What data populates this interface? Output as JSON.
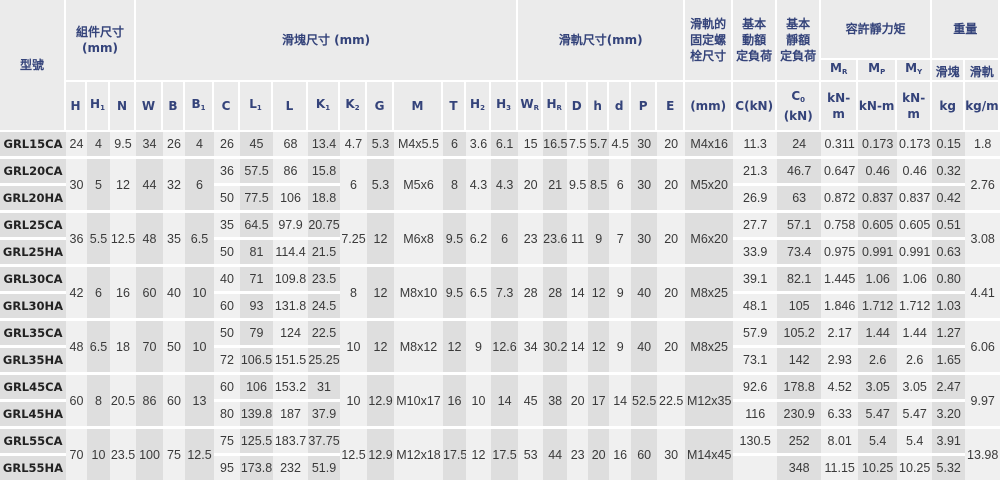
{
  "header": {
    "model": "型號",
    "assembly": "組件尺寸",
    "assembly_unit": "(mm)",
    "block": "滑塊尺寸 (mm)",
    "rail": "滑軌尺寸(mm)",
    "bolt_lines": [
      "滑軌的",
      "固定螺",
      "栓尺寸"
    ],
    "bolt_unit": "(mm)",
    "dynamic_lines": [
      "基本",
      "動額",
      "定負荷"
    ],
    "dynamic_unit": "C(kN)",
    "static_lines": [
      "基本",
      "靜額",
      "定負荷"
    ],
    "static_unit": {
      "t": "C",
      "sub": "0",
      "rest": " (kN)"
    },
    "moment": "容許靜力矩",
    "moment_cols": [
      {
        "t": "M",
        "sub": "R"
      },
      {
        "t": "M",
        "sub": "P"
      },
      {
        "t": "M",
        "sub": "Y"
      }
    ],
    "moment_unit": "kN-m",
    "weight": "重量",
    "weight_cols": [
      "滑塊",
      "滑軌"
    ],
    "weight_units": [
      "kg",
      "kg/m"
    ],
    "dim_cols": [
      {
        "t": "H",
        "sub": ""
      },
      {
        "t": "H",
        "sub": "1"
      },
      {
        "t": "N",
        "sub": ""
      },
      {
        "t": "W",
        "sub": ""
      },
      {
        "t": "B",
        "sub": ""
      },
      {
        "t": "B",
        "sub": "1"
      },
      {
        "t": "C",
        "sub": ""
      },
      {
        "t": "L",
        "sub": "1"
      },
      {
        "t": "L",
        "sub": ""
      },
      {
        "t": "K",
        "sub": "1"
      },
      {
        "t": "K",
        "sub": "2"
      },
      {
        "t": "G",
        "sub": ""
      },
      {
        "t": "M",
        "sub": ""
      },
      {
        "t": "T",
        "sub": ""
      },
      {
        "t": "H",
        "sub": "2"
      },
      {
        "t": "H",
        "sub": "3"
      },
      {
        "t": "W",
        "sub": "R"
      },
      {
        "t": "H",
        "sub": "R"
      },
      {
        "t": "D",
        "sub": ""
      },
      {
        "t": "h",
        "sub": ""
      },
      {
        "t": "d",
        "sub": ""
      },
      {
        "t": "P",
        "sub": ""
      },
      {
        "t": "E",
        "sub": ""
      }
    ]
  },
  "groups": [
    {
      "rows": [
        [
          "GRL15CA",
          "24",
          "4",
          "9.5",
          "34",
          "26",
          "4",
          "26",
          "45",
          "68",
          "13.4",
          "4.7",
          "5.3",
          "M4x5.5",
          "6",
          "3.6",
          "6.1",
          "15",
          "16.5",
          "7.5",
          "5.7",
          "4.5",
          "30",
          "20",
          "M4x16",
          "11.3",
          "24",
          "0.311",
          "0.173",
          "0.173",
          "0.15",
          "1.8"
        ]
      ]
    },
    {
      "rows": [
        [
          "GRL20CA",
          "30",
          "5",
          "12",
          "44",
          "32",
          "6",
          "36",
          "57.5",
          "86",
          "15.8",
          "6",
          "5.3",
          "M5x6",
          "8",
          "4.3",
          "4.3",
          "20",
          "21",
          "9.5",
          "8.5",
          "6",
          "30",
          "20",
          "M5x20",
          "21.3",
          "46.7",
          "0.647",
          "0.46",
          "0.46",
          "0.32",
          "2.76"
        ],
        [
          "GRL20HA",
          null,
          null,
          null,
          null,
          null,
          null,
          "50",
          "77.5",
          "106",
          "18.8",
          null,
          null,
          null,
          null,
          null,
          null,
          null,
          null,
          null,
          null,
          null,
          null,
          null,
          null,
          "26.9",
          "63",
          "0.872",
          "0.837",
          "0.837",
          "0.42",
          null
        ]
      ]
    },
    {
      "rows": [
        [
          "GRL25CA",
          "36",
          "5.5",
          "12.5",
          "48",
          "35",
          "6.5",
          "35",
          "64.5",
          "97.9",
          "20.75",
          "7.25",
          "12",
          "M6x8",
          "9.5",
          "6.2",
          "6",
          "23",
          "23.6",
          "11",
          "9",
          "7",
          "30",
          "20",
          "M6x20",
          "27.7",
          "57.1",
          "0.758",
          "0.605",
          "0.605",
          "0.51",
          "3.08"
        ],
        [
          "GRL25HA",
          null,
          null,
          null,
          null,
          null,
          null,
          "50",
          "81",
          "114.4",
          "21.5",
          null,
          null,
          null,
          null,
          null,
          null,
          null,
          null,
          null,
          null,
          null,
          null,
          null,
          null,
          "33.9",
          "73.4",
          "0.975",
          "0.991",
          "0.991",
          "0.63",
          null
        ]
      ]
    },
    {
      "rows": [
        [
          "GRL30CA",
          "42",
          "6",
          "16",
          "60",
          "40",
          "10",
          "40",
          "71",
          "109.8",
          "23.5",
          "8",
          "12",
          "M8x10",
          "9.5",
          "6.5",
          "7.3",
          "28",
          "28",
          "14",
          "12",
          "9",
          "40",
          "20",
          "M8x25",
          "39.1",
          "82.1",
          "1.445",
          "1.06",
          "1.06",
          "0.80",
          "4.41"
        ],
        [
          "GRL30HA",
          null,
          null,
          null,
          null,
          null,
          null,
          "60",
          "93",
          "131.8",
          "24.5",
          null,
          null,
          null,
          null,
          null,
          null,
          null,
          null,
          null,
          null,
          null,
          null,
          null,
          null,
          "48.1",
          "105",
          "1.846",
          "1.712",
          "1.712",
          "1.03",
          null
        ]
      ]
    },
    {
      "rows": [
        [
          "GRL35CA",
          "48",
          "6.5",
          "18",
          "70",
          "50",
          "10",
          "50",
          "79",
          "124",
          "22.5",
          "10",
          "12",
          "M8x12",
          "12",
          "9",
          "12.6",
          "34",
          "30.2",
          "14",
          "12",
          "9",
          "40",
          "20",
          "M8x25",
          "57.9",
          "105.2",
          "2.17",
          "1.44",
          "1.44",
          "1.27",
          "6.06"
        ],
        [
          "GRL35HA",
          null,
          null,
          null,
          null,
          null,
          null,
          "72",
          "106.5",
          "151.5",
          "25.25",
          null,
          null,
          null,
          null,
          null,
          null,
          null,
          null,
          null,
          null,
          null,
          null,
          null,
          null,
          "73.1",
          "142",
          "2.93",
          "2.6",
          "2.6",
          "1.65",
          null
        ]
      ]
    },
    {
      "rows": [
        [
          "GRL45CA",
          "60",
          "8",
          "20.5",
          "86",
          "60",
          "13",
          "60",
          "106",
          "153.2",
          "31",
          "10",
          "12.9",
          "M10x17",
          "16",
          "10",
          "14",
          "45",
          "38",
          "20",
          "17",
          "14",
          "52.5",
          "22.5",
          "M12x35",
          "92.6",
          "178.8",
          "4.52",
          "3.05",
          "3.05",
          "2.47",
          "9.97"
        ],
        [
          "GRL45HA",
          null,
          null,
          null,
          null,
          null,
          null,
          "80",
          "139.8",
          "187",
          "37.9",
          null,
          null,
          null,
          null,
          null,
          null,
          null,
          null,
          null,
          null,
          null,
          null,
          null,
          null,
          "116",
          "230.9",
          "6.33",
          "5.47",
          "5.47",
          "3.20",
          null
        ]
      ]
    },
    {
      "rows": [
        [
          "GRL55CA",
          "70",
          "10",
          "23.5",
          "100",
          "75",
          "12.5",
          "75",
          "125.5",
          "183.7",
          "37.75",
          "12.5",
          "12.9",
          "M12x18",
          "17.5",
          "12",
          "17.5",
          "53",
          "44",
          "23",
          "20",
          "16",
          "60",
          "30",
          "M14x45",
          "130.5",
          "252",
          "8.01",
          "5.4",
          "5.4",
          "3.91",
          "13.98"
        ],
        [
          "GRL55HA",
          null,
          null,
          null,
          null,
          null,
          null,
          "95",
          "173.8",
          "232",
          "51.9",
          null,
          null,
          null,
          null,
          null,
          null,
          null,
          null,
          null,
          null,
          null,
          null,
          null,
          null,
          "",
          "348",
          "11.15",
          "10.25",
          "10.25",
          "5.32",
          null
        ]
      ]
    }
  ],
  "colors": {
    "header_bg": "#ebebeb",
    "header_text": "#34437a",
    "cell_dark": "#dedede",
    "cell_light": "#f0f0f0"
  }
}
